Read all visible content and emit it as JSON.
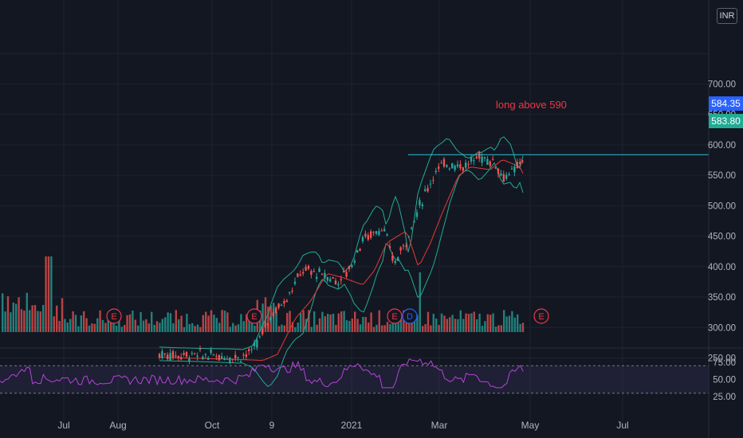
{
  "header": {
    "currency": "INR"
  },
  "annotation": {
    "text": "long above 590"
  },
  "price_tags": {
    "last": "584.35",
    "level": "583.80"
  },
  "colors": {
    "background": "#131722",
    "up": "#26a69a",
    "down": "#ef5350",
    "bollinger": "#22ab94",
    "ma": "#e53935",
    "rsi": "#b544d8",
    "hline": "#26c6da",
    "note": "#f23645",
    "earnings": "#f23645",
    "dividend": "#2962ff"
  },
  "chart_data": {
    "type": "candlestick",
    "price_axis": {
      "ticks": [
        "700.00",
        "650.00",
        "600.00",
        "550.00",
        "500.00",
        "450.00",
        "400.00",
        "350.00",
        "300.00",
        "250.00"
      ],
      "ylim": [
        240,
        755
      ]
    },
    "time_axis": {
      "ticks": [
        "Jul",
        "Aug",
        "Oct",
        "9",
        "2021",
        "Mar",
        "May",
        "Jul"
      ]
    },
    "horizontal_line": {
      "value": 583.8,
      "from": "2021-02"
    },
    "series": [
      {
        "name": "price",
        "approx_path": [
          {
            "t": "2020-09",
            "close": 255
          },
          {
            "t": "2020-10-01",
            "close": 260
          },
          {
            "t": "2020-11-09",
            "close": 320
          },
          {
            "t": "2020-11-20",
            "close": 395
          },
          {
            "t": "2020-12-10",
            "close": 385
          },
          {
            "t": "2021-01-05",
            "close": 440
          },
          {
            "t": "2021-01-25",
            "close": 460
          },
          {
            "t": "2021-02-10",
            "close": 500
          },
          {
            "t": "2021-02-25",
            "close": 555
          },
          {
            "t": "2021-03-25",
            "close": 570
          },
          {
            "t": "2021-04-15",
            "close": 555
          },
          {
            "t": "2021-04-28",
            "close": 584
          }
        ]
      }
    ],
    "events": [
      {
        "type": "E",
        "label": "E"
      },
      {
        "type": "E",
        "label": "E"
      },
      {
        "type": "E",
        "label": "E"
      },
      {
        "type": "D",
        "label": "D"
      },
      {
        "type": "E",
        "label": "E"
      }
    ],
    "rsi": {
      "ticks": [
        "75.00",
        "50.00",
        "25.00"
      ],
      "ylim": [
        22,
        82
      ],
      "levels": [
        70,
        30
      ]
    }
  }
}
